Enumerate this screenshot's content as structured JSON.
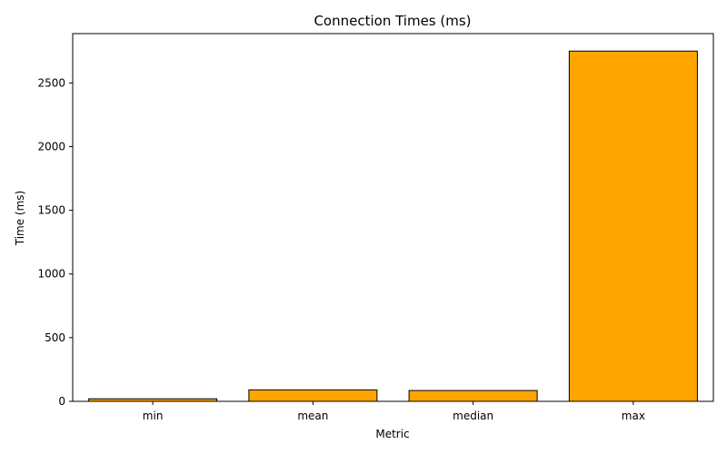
{
  "chart_data": {
    "type": "bar",
    "title": "Connection Times (ms)",
    "xlabel": "Metric",
    "ylabel": "Time (ms)",
    "categories": [
      "min",
      "mean",
      "median",
      "max"
    ],
    "values": [
      20,
      90,
      85,
      2750
    ],
    "ylim": [
      0,
      2887.5
    ],
    "yticks": [
      0,
      500,
      1000,
      1500,
      2000,
      2500
    ],
    "bar_color": "#ffa500",
    "edge_color": "#000000",
    "grid": false,
    "legend": "none"
  }
}
